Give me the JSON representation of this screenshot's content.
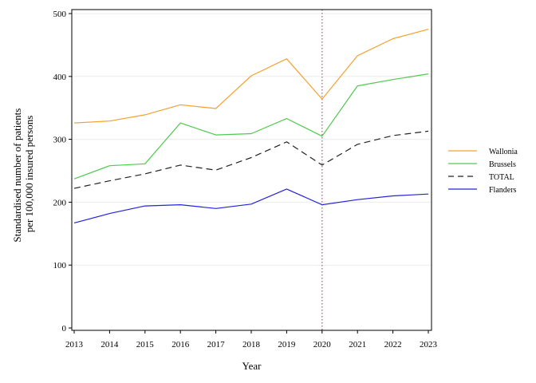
{
  "chart_data": {
    "type": "line",
    "title": "",
    "xlabel": "Year",
    "ylabel_lines": [
      "Standardised number of patients",
      "per 100,000 insured persons"
    ],
    "x": [
      2013,
      2014,
      2015,
      2016,
      2017,
      2018,
      2019,
      2020,
      2021,
      2022,
      2023
    ],
    "xlim": [
      2013,
      2023
    ],
    "ylim": [
      0,
      500
    ],
    "yticks": [
      0,
      100,
      200,
      300,
      400,
      500
    ],
    "grid": "horizontal",
    "reference_line_x": 2020,
    "legend_position": "right",
    "series": [
      {
        "name": "Wallonia",
        "color": "#f5a030",
        "dash": "none",
        "values": [
          326,
          329,
          339,
          355,
          349,
          401,
          428,
          364,
          433,
          460,
          475
        ]
      },
      {
        "name": "Brussels",
        "color": "#4fc94f",
        "dash": "none",
        "values": [
          237,
          258,
          261,
          326,
          307,
          309,
          333,
          305,
          385,
          395,
          404
        ]
      },
      {
        "name": "TOTAL",
        "color": "#222222",
        "dash": "8,5",
        "values": [
          222,
          234,
          245,
          259,
          251,
          271,
          296,
          259,
          292,
          306,
          313
        ]
      },
      {
        "name": "Flanders",
        "color": "#2323dd",
        "dash": "none",
        "values": [
          167,
          182,
          194,
          196,
          190,
          197,
          221,
          196,
          204,
          210,
          213
        ]
      }
    ]
  }
}
